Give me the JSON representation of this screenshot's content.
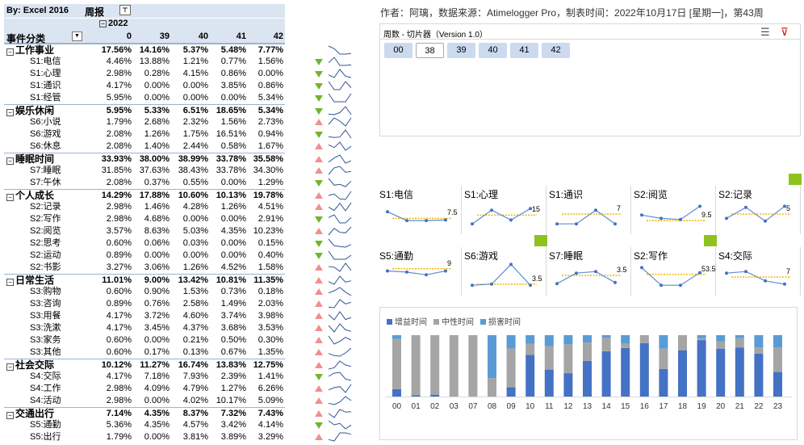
{
  "pivot": {
    "title": "By:  Excel 2016",
    "report": "周报",
    "filter_icon": "funnel-icon",
    "year": "2022",
    "category_header": "事件分类",
    "weeks": [
      "0",
      "39",
      "40",
      "41",
      "42"
    ],
    "rows": [
      {
        "type": "grp",
        "label": "工作事业",
        "values": [
          "17.56%",
          "14.16%",
          "5.37%",
          "5.48%",
          "7.77%"
        ],
        "trend": "none",
        "spark": [
          4,
          3,
          1,
          1,
          1.2
        ]
      },
      {
        "type": "item",
        "label": "S1:电信",
        "values": [
          "4.46%",
          "13.88%",
          "1.21%",
          "0.77%",
          "1.56%"
        ],
        "trend": "down",
        "spark": [
          2,
          4,
          1,
          1,
          1.2
        ]
      },
      {
        "type": "item",
        "label": "S1:心理",
        "values": [
          "2.98%",
          "0.28%",
          "4.15%",
          "0.86%",
          "0.00%"
        ],
        "trend": "down",
        "spark": [
          2,
          1,
          4,
          1.5,
          1
        ]
      },
      {
        "type": "item",
        "label": "S1:通识",
        "values": [
          "4.17%",
          "0.00%",
          "0.00%",
          "3.85%",
          "0.86%"
        ],
        "trend": "down",
        "spark": [
          3,
          1,
          1,
          3,
          1.5
        ]
      },
      {
        "type": "item",
        "label": "S1:经管",
        "values": [
          "5.95%",
          "0.00%",
          "0.00%",
          "0.00%",
          "5.34%"
        ],
        "trend": "down",
        "spark": [
          4,
          1,
          1,
          1,
          4
        ]
      },
      {
        "type": "grp",
        "label": "娱乐休闲",
        "values": [
          "5.95%",
          "5.33%",
          "6.51%",
          "18.65%",
          "5.34%"
        ],
        "trend": "down",
        "spark": [
          1.5,
          1.3,
          2,
          4,
          1.3
        ]
      },
      {
        "type": "item",
        "label": "S6:小说",
        "values": [
          "1.79%",
          "2.68%",
          "2.32%",
          "1.56%",
          "2.73%"
        ],
        "trend": "up",
        "spark": [
          2,
          4,
          3,
          1.5,
          4
        ]
      },
      {
        "type": "item",
        "label": "S6:游戏",
        "values": [
          "2.08%",
          "1.26%",
          "1.75%",
          "16.51%",
          "0.94%"
        ],
        "trend": "down",
        "spark": [
          1.5,
          1.2,
          1.4,
          4,
          1
        ]
      },
      {
        "type": "item",
        "label": "S6:休息",
        "values": [
          "2.08%",
          "1.40%",
          "2.44%",
          "0.58%",
          "1.67%"
        ],
        "trend": "up",
        "spark": [
          3,
          2,
          4,
          1,
          2.5
        ]
      },
      {
        "type": "grp",
        "label": "睡眠时间",
        "values": [
          "33.93%",
          "38.00%",
          "38.99%",
          "33.78%",
          "35.58%"
        ],
        "trend": "up",
        "spark": [
          1.5,
          3,
          4,
          1.2,
          2
        ]
      },
      {
        "type": "item",
        "label": "S7:睡眠",
        "values": [
          "31.85%",
          "37.63%",
          "38.43%",
          "33.78%",
          "34.30%"
        ],
        "trend": "up",
        "spark": [
          1.3,
          3.5,
          4,
          2,
          2.3
        ]
      },
      {
        "type": "item",
        "label": "S7:午休",
        "values": [
          "2.08%",
          "0.37%",
          "0.55%",
          "0.00%",
          "1.29%"
        ],
        "trend": "down",
        "spark": [
          4,
          1.5,
          1.8,
          1,
          3
        ]
      },
      {
        "type": "grp",
        "label": "个人成长",
        "values": [
          "14.29%",
          "17.88%",
          "10.60%",
          "10.13%",
          "19.78%"
        ],
        "trend": "up",
        "spark": [
          2.5,
          3,
          1.2,
          1,
          4
        ]
      },
      {
        "type": "item",
        "label": "S2:记录",
        "values": [
          "2.98%",
          "1.46%",
          "4.28%",
          "1.26%",
          "4.51%"
        ],
        "trend": "up",
        "spark": [
          2.5,
          1.3,
          3.8,
          1.2,
          4
        ]
      },
      {
        "type": "item",
        "label": "S2:写作",
        "values": [
          "2.98%",
          "4.68%",
          "0.00%",
          "0.00%",
          "2.91%"
        ],
        "trend": "down",
        "spark": [
          3,
          4,
          1,
          1,
          3
        ]
      },
      {
        "type": "item",
        "label": "S2:阅览",
        "values": [
          "3.57%",
          "8.63%",
          "5.03%",
          "4.35%",
          "10.23%"
        ],
        "trend": "up",
        "spark": [
          1,
          3.5,
          2,
          1.8,
          4
        ]
      },
      {
        "type": "item",
        "label": "S2:思考",
        "values": [
          "0.60%",
          "0.06%",
          "0.03%",
          "0.00%",
          "0.15%"
        ],
        "trend": "down",
        "spark": [
          4,
          1.5,
          1.2,
          1,
          2
        ]
      },
      {
        "type": "item",
        "label": "S2:运动",
        "values": [
          "0.89%",
          "0.00%",
          "0.00%",
          "0.00%",
          "0.40%"
        ],
        "trend": "down",
        "spark": [
          4,
          1,
          1,
          1,
          2.5
        ]
      },
      {
        "type": "item",
        "label": "S2:书影",
        "values": [
          "3.27%",
          "3.06%",
          "1.26%",
          "4.52%",
          "1.58%"
        ],
        "trend": "up",
        "spark": [
          3,
          2.8,
          1.5,
          4,
          1.8
        ]
      },
      {
        "type": "grp",
        "label": "日常生活",
        "values": [
          "11.01%",
          "9.00%",
          "13.42%",
          "10.81%",
          "11.35%"
        ],
        "trend": "up",
        "spark": [
          2,
          1,
          4,
          1.8,
          2.3
        ]
      },
      {
        "type": "item",
        "label": "S3:购物",
        "values": [
          "0.60%",
          "0.90%",
          "1.53%",
          "0.73%",
          "0.18%"
        ],
        "trend": "up",
        "spark": [
          2,
          2.8,
          4,
          2.3,
          1
        ]
      },
      {
        "type": "item",
        "label": "S3:咨询",
        "values": [
          "0.89%",
          "0.76%",
          "2.58%",
          "1.49%",
          "2.03%"
        ],
        "trend": "up",
        "spark": [
          1.2,
          1,
          4,
          2.4,
          3
        ]
      },
      {
        "type": "item",
        "label": "S3:用餐",
        "values": [
          "4.17%",
          "3.72%",
          "4.60%",
          "3.74%",
          "3.98%"
        ],
        "trend": "up",
        "spark": [
          3,
          1.2,
          4,
          1.3,
          2
        ]
      },
      {
        "type": "item",
        "label": "S3:洗漱",
        "values": [
          "4.17%",
          "3.45%",
          "4.37%",
          "3.68%",
          "3.53%"
        ],
        "trend": "up",
        "spark": [
          3.5,
          1.3,
          4,
          2,
          1.5
        ]
      },
      {
        "type": "item",
        "label": "S3:家务",
        "values": [
          "0.60%",
          "0.00%",
          "0.21%",
          "0.50%",
          "0.30%"
        ],
        "trend": "up",
        "spark": [
          4,
          1,
          2,
          3.5,
          2.5
        ]
      },
      {
        "type": "item",
        "label": "S3:其他",
        "values": [
          "0.60%",
          "0.17%",
          "0.13%",
          "0.67%",
          "1.35%"
        ],
        "trend": "up",
        "spark": [
          2,
          1.2,
          1,
          2.2,
          4
        ]
      },
      {
        "type": "grp",
        "label": "社会交际",
        "values": [
          "10.12%",
          "11.27%",
          "16.74%",
          "13.83%",
          "12.75%"
        ],
        "trend": "up",
        "spark": [
          1,
          1.5,
          4,
          2.5,
          2
        ]
      },
      {
        "type": "item",
        "label": "S4:交际",
        "values": [
          "4.17%",
          "7.18%",
          "7.93%",
          "2.39%",
          "1.41%"
        ],
        "trend": "down",
        "spark": [
          2.5,
          3.7,
          4,
          1.5,
          1
        ]
      },
      {
        "type": "item",
        "label": "S4:工作",
        "values": [
          "2.98%",
          "4.09%",
          "4.79%",
          "1.27%",
          "6.26%"
        ],
        "trend": "up",
        "spark": [
          2,
          2.8,
          3.2,
          1,
          4
        ]
      },
      {
        "type": "item",
        "label": "S4:活动",
        "values": [
          "2.98%",
          "0.00%",
          "4.02%",
          "10.17%",
          "5.09%"
        ],
        "trend": "up",
        "spark": [
          1.5,
          1,
          2,
          4,
          2.5
        ]
      },
      {
        "type": "grp",
        "label": "交通出行",
        "values": [
          "7.14%",
          "4.35%",
          "8.37%",
          "7.32%",
          "7.43%"
        ],
        "trend": "up",
        "spark": [
          2.5,
          1,
          4,
          3,
          3.2
        ]
      },
      {
        "type": "item",
        "label": "S5:通勤",
        "values": [
          "5.36%",
          "4.35%",
          "4.57%",
          "3.42%",
          "4.14%"
        ],
        "trend": "down",
        "spark": [
          4,
          2.5,
          3,
          1,
          2.4
        ]
      },
      {
        "type": "item",
        "label": "S5:出行",
        "values": [
          "1.79%",
          "0.00%",
          "3.81%",
          "3.89%",
          "3.29%"
        ],
        "trend": "up",
        "spark": [
          1.5,
          1,
          4,
          4,
          3.5
        ]
      }
    ]
  },
  "header_info": "作者：阿璃，数据来源：Atimelogger Pro，制表时间：2022年10月17日 [星期一]，第43周",
  "slicer": {
    "title": "周数 - 切片器（Version 1.0）",
    "multiselect_icon": "multiselect-icon",
    "clear_filter_icon": "clear-filter-icon",
    "buttons": [
      "00",
      "38",
      "39",
      "40",
      "41",
      "42"
    ],
    "selected": "38"
  },
  "cards": [
    {
      "title": "S1:电信",
      "value": "7.5",
      "points": [
        3.2,
        1.6,
        1.6,
        1.7
      ],
      "target": 2.0
    },
    {
      "title": "S1:心理",
      "value": "15",
      "points": [
        1.0,
        3.5,
        1.7,
        3.8
      ],
      "target": 2.6
    },
    {
      "title": "S1:通识",
      "value": "7",
      "points": [
        1.0,
        1.0,
        3.5,
        1.0
      ],
      "target": 2.8
    },
    {
      "title": "S2:阅览",
      "value": "9.5",
      "points": [
        2.6,
        2.0,
        1.8,
        4.2
      ],
      "target": 1.6
    },
    {
      "title": "S2:记录",
      "value": "5",
      "points": [
        2.0,
        4.0,
        1.5,
        4.2
      ],
      "target": 2.8
    },
    {
      "title": "S5:通勤",
      "value": "9",
      "points": [
        3.6,
        3.4,
        2.9,
        3.6
      ],
      "target": 4.0
    },
    {
      "title": "S6:游戏",
      "value": "3.5",
      "points": [
        1.0,
        1.2,
        4.8,
        1.0
      ],
      "target": 1.2
    },
    {
      "title": "S7:睡眠",
      "value": "3.5",
      "points": [
        1.3,
        3.2,
        3.5,
        1.5
      ],
      "target": 2.8
    },
    {
      "title": "S2:写作",
      "value": "53.5",
      "points": [
        4.2,
        1.0,
        1.0,
        3.3
      ],
      "target": 3.0
    },
    {
      "title": "S4:交际",
      "value": "7",
      "points": [
        3.2,
        3.5,
        1.8,
        1.2
      ],
      "target": 2.5
    }
  ],
  "chart_data": {
    "type": "bar",
    "stacked": true,
    "legend": "top-left",
    "ylim": [
      0,
      1
    ],
    "categories": [
      "00",
      "01",
      "02",
      "03",
      "07",
      "08",
      "09",
      "10",
      "11",
      "12",
      "13",
      "14",
      "15",
      "16",
      "17",
      "18",
      "19",
      "20",
      "21",
      "22",
      "23"
    ],
    "series": [
      {
        "name": "增益时间",
        "color": "#4472c4",
        "values": [
          0.12,
          0.02,
          0.03,
          0,
          0,
          0,
          0.15,
          0.68,
          0.44,
          0.38,
          0.58,
          0.74,
          0.79,
          0.87,
          0.45,
          0.75,
          0.92,
          0.78,
          0.8,
          0.7,
          0.4
        ]
      },
      {
        "name": "中性时间",
        "color": "#a5a5a5",
        "values": [
          0.82,
          0.98,
          0.97,
          1.0,
          1.0,
          0.3,
          0.63,
          0.18,
          0.38,
          0.47,
          0.3,
          0.22,
          0.07,
          0.13,
          0.33,
          0.25,
          0.03,
          0.12,
          0.15,
          0.1,
          0.4
        ]
      },
      {
        "name": "损害时间",
        "color": "#5b9bd5",
        "values": [
          0.06,
          0,
          0,
          0,
          0,
          0.7,
          0.22,
          0.14,
          0.18,
          0.15,
          0.12,
          0.04,
          0.14,
          0,
          0.22,
          0,
          0.05,
          0.1,
          0.05,
          0.2,
          0.2
        ]
      }
    ],
    "colors": {
      "grid": "#d9d9d9"
    }
  }
}
